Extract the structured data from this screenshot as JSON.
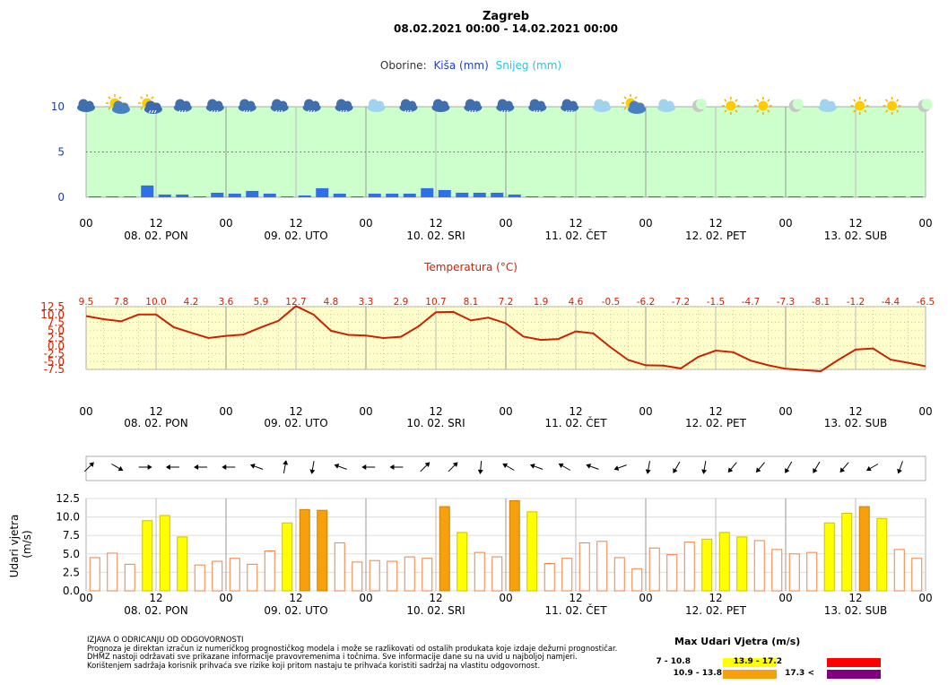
{
  "header": {
    "city": "Zagreb",
    "period": "08.02.2021 00:00 - 14.02.2021 00:00"
  },
  "colors": {
    "precip_bg": "#ccffcc",
    "temp_bg": "#ffffcc",
    "rain_bar": "#2f6fe8",
    "temp_line": "#cc2200",
    "wind_yellow": "#ffff00",
    "wind_orange": "#f5a00c",
    "wind_red": "#ff0000",
    "wind_purple": "#800080",
    "wind_outline": "#f08040"
  },
  "x_axis": {
    "hour_labels": [
      "00",
      "12",
      "00",
      "12",
      "00",
      "12",
      "00",
      "12",
      "00",
      "12",
      "00",
      "12",
      "00"
    ],
    "day_labels": [
      "08. 02. PON",
      "09. 02. UTO",
      "10. 02. SRI",
      "11. 02. ČET",
      "12. 02. PET",
      "13. 02. SUB"
    ]
  },
  "weather_icons": [
    "cloud-icon",
    "sun-cloud-icon",
    "sun-rain-icon",
    "rain-icon",
    "rain-icon",
    "rain-icon",
    "rain-icon",
    "rain-icon",
    "rain-icon",
    "cloud-rain-icon",
    "rain-icon",
    "cloud-icon",
    "rain-icon",
    "rain-icon",
    "rain-icon",
    "rain-icon",
    "cloud-icon",
    "sun-cloud-icon",
    "cloud-icon",
    "moon-icon",
    "sun-icon",
    "sun-icon",
    "moon-icon",
    "cloud-icon",
    "sun-icon",
    "sun-icon",
    "moon-icon"
  ],
  "chart_data": [
    {
      "type": "bar",
      "title": "Oborine:",
      "legend": [
        {
          "name": "Kiša (mm)",
          "color": "#1f3fbf"
        },
        {
          "name": "Snijeg (mm)",
          "color": "#22c7e0"
        }
      ],
      "ylim": [
        0,
        10
      ],
      "yticks": [
        "0",
        "5",
        "10"
      ],
      "x_hours": [
        3,
        6,
        9,
        12,
        15,
        18,
        21,
        24,
        27,
        30,
        33,
        36,
        39,
        42,
        45,
        48,
        51,
        54,
        57,
        60,
        63,
        66,
        69,
        72,
        75,
        78,
        81,
        84,
        87,
        90,
        93,
        96,
        99,
        102,
        105,
        108,
        111,
        114,
        117,
        120,
        123,
        126,
        129,
        132,
        135,
        138,
        141,
        144
      ],
      "series": [
        {
          "name": "Kiša (mm)",
          "values": [
            0.1,
            0.1,
            0.1,
            1.3,
            0.3,
            0.3,
            0.1,
            0.5,
            0.4,
            0.7,
            0.4,
            0.1,
            0.2,
            1.0,
            0.4,
            0.1,
            0.4,
            0.4,
            0.4,
            1.0,
            0.8,
            0.5,
            0.5,
            0.5,
            0.3,
            0.1,
            0.1,
            0.1,
            0.1,
            0.1,
            0.1,
            0.1,
            0.1,
            0.1,
            0.1,
            0.1,
            0.1,
            0.1,
            0.1,
            0.1,
            0.1,
            0.1,
            0.1,
            0.1,
            0.1,
            0.1,
            0.1,
            0.1
          ]
        }
      ]
    },
    {
      "type": "line",
      "title": "Temperatura (°C)",
      "ylim": [
        -7.5,
        12.5
      ],
      "yticks": [
        "12.5",
        "10.0",
        "7.5",
        "5.0",
        "2.5",
        "0.0",
        "-2.5",
        "-5.0",
        "-7.5"
      ],
      "label_values": [
        "9.5",
        "7.8",
        "10.0",
        "4.2",
        "3.6",
        "5.9",
        "12.7",
        "4.8",
        "3.3",
        "2.9",
        "10.7",
        "8.1",
        "7.2",
        "1.9",
        "4.6",
        "-0.5",
        "-6.2",
        "-7.2",
        "-1.5",
        "-4.7",
        "-7.3",
        "-8.1",
        "-1.2",
        "-4.4",
        "-6.5"
      ],
      "x_hours": [
        0,
        3,
        6,
        9,
        12,
        15,
        18,
        21,
        24,
        27,
        30,
        33,
        36,
        39,
        42,
        45,
        48,
        51,
        54,
        57,
        60,
        63,
        66,
        69,
        72,
        75,
        78,
        81,
        84,
        87,
        90,
        93,
        96,
        99,
        102,
        105,
        108,
        111,
        114,
        117,
        120,
        123,
        126,
        129,
        132,
        135,
        138,
        141,
        144
      ],
      "values": [
        9.5,
        8.5,
        7.8,
        10.0,
        10.0,
        6.0,
        4.2,
        2.5,
        3.2,
        3.6,
        5.9,
        8.0,
        12.7,
        10.0,
        4.8,
        3.5,
        3.3,
        2.5,
        2.9,
        6.2,
        10.7,
        10.8,
        8.1,
        9.0,
        7.2,
        3.0,
        1.9,
        2.2,
        4.6,
        4.0,
        -0.5,
        -4.5,
        -6.2,
        -6.3,
        -7.2,
        -3.5,
        -1.5,
        -2.0,
        -4.7,
        -6.2,
        -7.3,
        -7.7,
        -8.1,
        -4.5,
        -1.2,
        -0.8,
        -4.4,
        -5.4,
        -6.5
      ]
    },
    {
      "type": "bar",
      "title": "Udari vjetra (m/s)",
      "ylabel": "Udari vjetra\n(m/s)",
      "ylim": [
        0,
        12.5
      ],
      "yticks": [
        "12.5",
        "10.0",
        "7.5",
        "5.0",
        "2.5",
        "0.0"
      ],
      "x_hours": [
        3,
        6,
        9,
        12,
        15,
        18,
        21,
        24,
        27,
        30,
        33,
        36,
        39,
        42,
        45,
        48,
        51,
        54,
        57,
        60,
        63,
        66,
        69,
        72,
        75,
        78,
        81,
        84,
        87,
        90,
        93,
        96,
        99,
        102,
        105,
        108,
        111,
        114,
        117,
        120,
        123,
        126,
        129,
        132,
        135,
        138,
        141,
        144
      ],
      "values": [
        4.5,
        5.1,
        3.6,
        9.5,
        10.2,
        7.3,
        3.5,
        4.0,
        4.4,
        3.6,
        5.4,
        9.2,
        11.0,
        10.9,
        6.5,
        3.9,
        4.1,
        4.0,
        4.6,
        4.4,
        11.4,
        7.9,
        5.2,
        4.6,
        12.2,
        10.7,
        3.7,
        4.4,
        6.5,
        6.7,
        4.5,
        3.0,
        5.8,
        4.9,
        6.6,
        7.0,
        7.9,
        7.3,
        6.8,
        5.6,
        5.0,
        5.2,
        9.2,
        10.5,
        11.4,
        9.8,
        5.6,
        4.4
      ],
      "wind_arrow_angles": [
        -45,
        30,
        0,
        180,
        180,
        180,
        200,
        -80,
        100,
        200,
        180,
        180,
        -45,
        -45,
        95,
        210,
        200,
        210,
        200,
        160,
        100,
        120,
        100,
        130,
        130,
        120,
        120,
        130,
        150,
        110
      ],
      "legend": {
        "title": "Max Udari Vjetra (m/s)",
        "items": [
          {
            "range": "7 - 10.8",
            "color": "#ffff00"
          },
          {
            "range": "13.9 - 17.2",
            "color": "#ff0000"
          },
          {
            "range": "10.9 - 13.8",
            "color": "#f5a00c"
          },
          {
            "range": "17.3 <",
            "color": "#800080"
          }
        ]
      }
    }
  ],
  "disclaimer": {
    "heading": "IZJAVA O ODRICANJU OD ODGOVORNOSTI",
    "lines": [
      "Prognoza je direktan izračun iz numeričkog prognostičkog modela i može se razlikovati od ostalih produkata koje izdaje dežurni prognostičar.",
      "DHMZ nastoji održavati sve prikazane informacije pravovremenima i točnima. Sve informacije dane su na uvid u najboljoj namjeri.",
      "Korištenjem sadržaja korisnik prihvaća sve rizike koji pritom nastaju te prihvaća koristiti sadržaj na vlastitu odgovornost."
    ]
  }
}
